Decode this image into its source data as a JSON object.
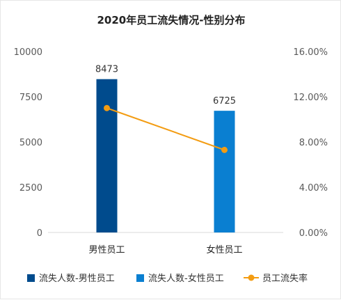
{
  "chart_data": {
    "type": "bar",
    "title": "2020年员工流失情况-性别分布",
    "categories": [
      "男性员工",
      "女性员工"
    ],
    "series": [
      {
        "name": "流失人数-男性员工",
        "kind": "bar",
        "axis": "left",
        "color": "#004b8d",
        "values": [
          8473,
          null
        ]
      },
      {
        "name": "流失人数-女性员工",
        "kind": "bar",
        "axis": "left",
        "color": "#0a7fd1",
        "values": [
          null,
          6725
        ]
      },
      {
        "name": "员工流失率",
        "kind": "line",
        "axis": "right",
        "color": "#f39c12",
        "values": [
          0.11,
          0.073
        ]
      }
    ],
    "data_labels": [
      "8473",
      "6725"
    ],
    "y_left": {
      "min": 0,
      "max": 10000,
      "ticks": [
        "0",
        "2500",
        "5000",
        "7500",
        "10000"
      ]
    },
    "y_right": {
      "min": 0,
      "max": 0.16,
      "ticks": [
        "0.00%",
        "4.00%",
        "8.00%",
        "12.00%",
        "16.00%"
      ]
    },
    "grid": false,
    "legend_position": "bottom"
  }
}
